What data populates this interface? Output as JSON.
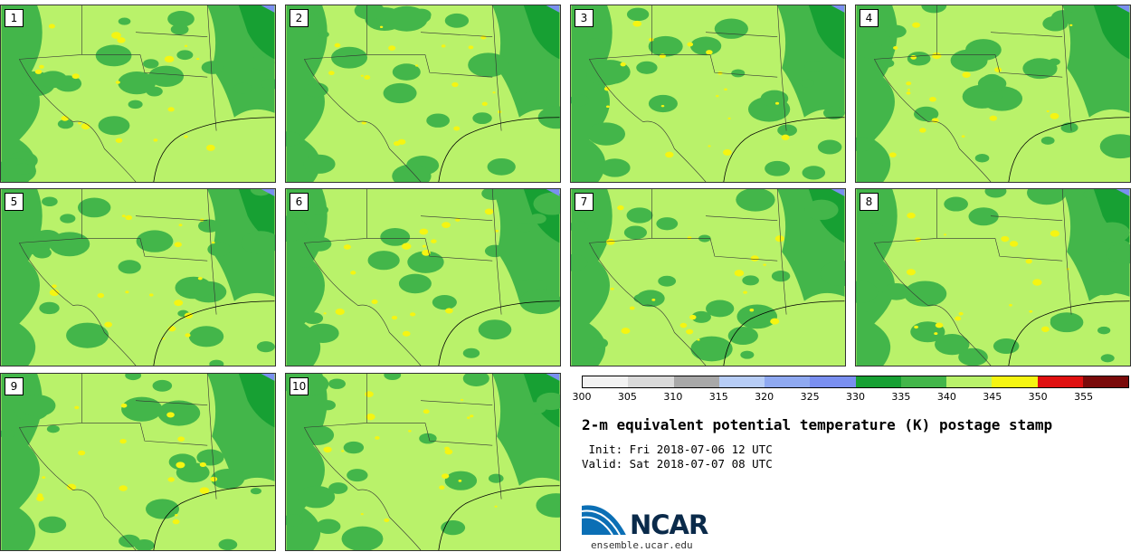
{
  "members": [
    {
      "label": "1"
    },
    {
      "label": "2"
    },
    {
      "label": "3"
    },
    {
      "label": "4"
    },
    {
      "label": "5"
    },
    {
      "label": "6"
    },
    {
      "label": "7"
    },
    {
      "label": "8"
    },
    {
      "label": "9"
    },
    {
      "label": "10"
    }
  ],
  "colorbar": {
    "colors": [
      "#f2f2f2",
      "#dadada",
      "#a8a8a8",
      "#b7cdf6",
      "#8fa9f1",
      "#7a8ff0",
      "#17a033",
      "#43b64a",
      "#b9f26a",
      "#f5f512",
      "#e01010",
      "#7a0a0a"
    ],
    "ticks": [
      "300",
      "305",
      "310",
      "315",
      "320",
      "325",
      "330",
      "335",
      "340",
      "345",
      "350",
      "355"
    ],
    "unit_range": [
      300,
      360
    ]
  },
  "map_colors": {
    "land_light": "#b9f26a",
    "land_dark": "#43b64a",
    "land_darker": "#17a033",
    "warm": "#f5f512",
    "water": "#7a8ff0"
  },
  "title": "2-m equivalent potential temperature (K) postage stamp",
  "init": " Init: Fri 2018-07-06 12 UTC",
  "valid": "Valid: Sat 2018-07-07 08 UTC",
  "logo_text": "NCAR",
  "site": "ensemble.ucar.edu"
}
